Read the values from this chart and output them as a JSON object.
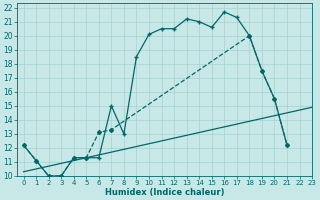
{
  "xlabel": "Humidex (Indice chaleur)",
  "background_color": "#c8e8e8",
  "grid_color": "#a8d0d0",
  "line_color": "#006868",
  "xlim": [
    -0.5,
    23
  ],
  "ylim": [
    10,
    22.3
  ],
  "xticks": [
    0,
    1,
    2,
    3,
    4,
    5,
    6,
    7,
    8,
    9,
    10,
    11,
    12,
    13,
    14,
    15,
    16,
    17,
    18,
    19,
    20,
    21,
    22,
    23
  ],
  "yticks": [
    10,
    11,
    12,
    13,
    14,
    15,
    16,
    17,
    18,
    19,
    20,
    21,
    22
  ],
  "curve1_x": [
    0,
    1,
    2,
    3,
    4,
    5,
    6,
    7,
    8,
    9,
    10,
    11,
    12,
    13,
    14,
    15,
    16,
    17,
    18,
    19,
    20,
    21
  ],
  "curve1_y": [
    12.2,
    11.1,
    10.0,
    10.0,
    11.3,
    11.3,
    11.3,
    15.0,
    13.0,
    18.5,
    20.1,
    20.5,
    20.5,
    21.2,
    21.0,
    20.6,
    21.7,
    21.3,
    20.0,
    17.5,
    15.5,
    12.2
  ],
  "curve2_x": [
    0,
    1,
    2,
    3,
    4,
    5,
    6,
    7,
    18,
    19,
    20,
    21
  ],
  "curve2_y": [
    12.2,
    11.1,
    10.0,
    10.0,
    11.3,
    11.3,
    13.1,
    13.3,
    20.0,
    17.5,
    15.5,
    12.2
  ],
  "line3_x": [
    0,
    23
  ],
  "line3_y": [
    10.3,
    14.9
  ],
  "marker_style": "+",
  "marker_size": 3.5,
  "linewidth": 0.9
}
